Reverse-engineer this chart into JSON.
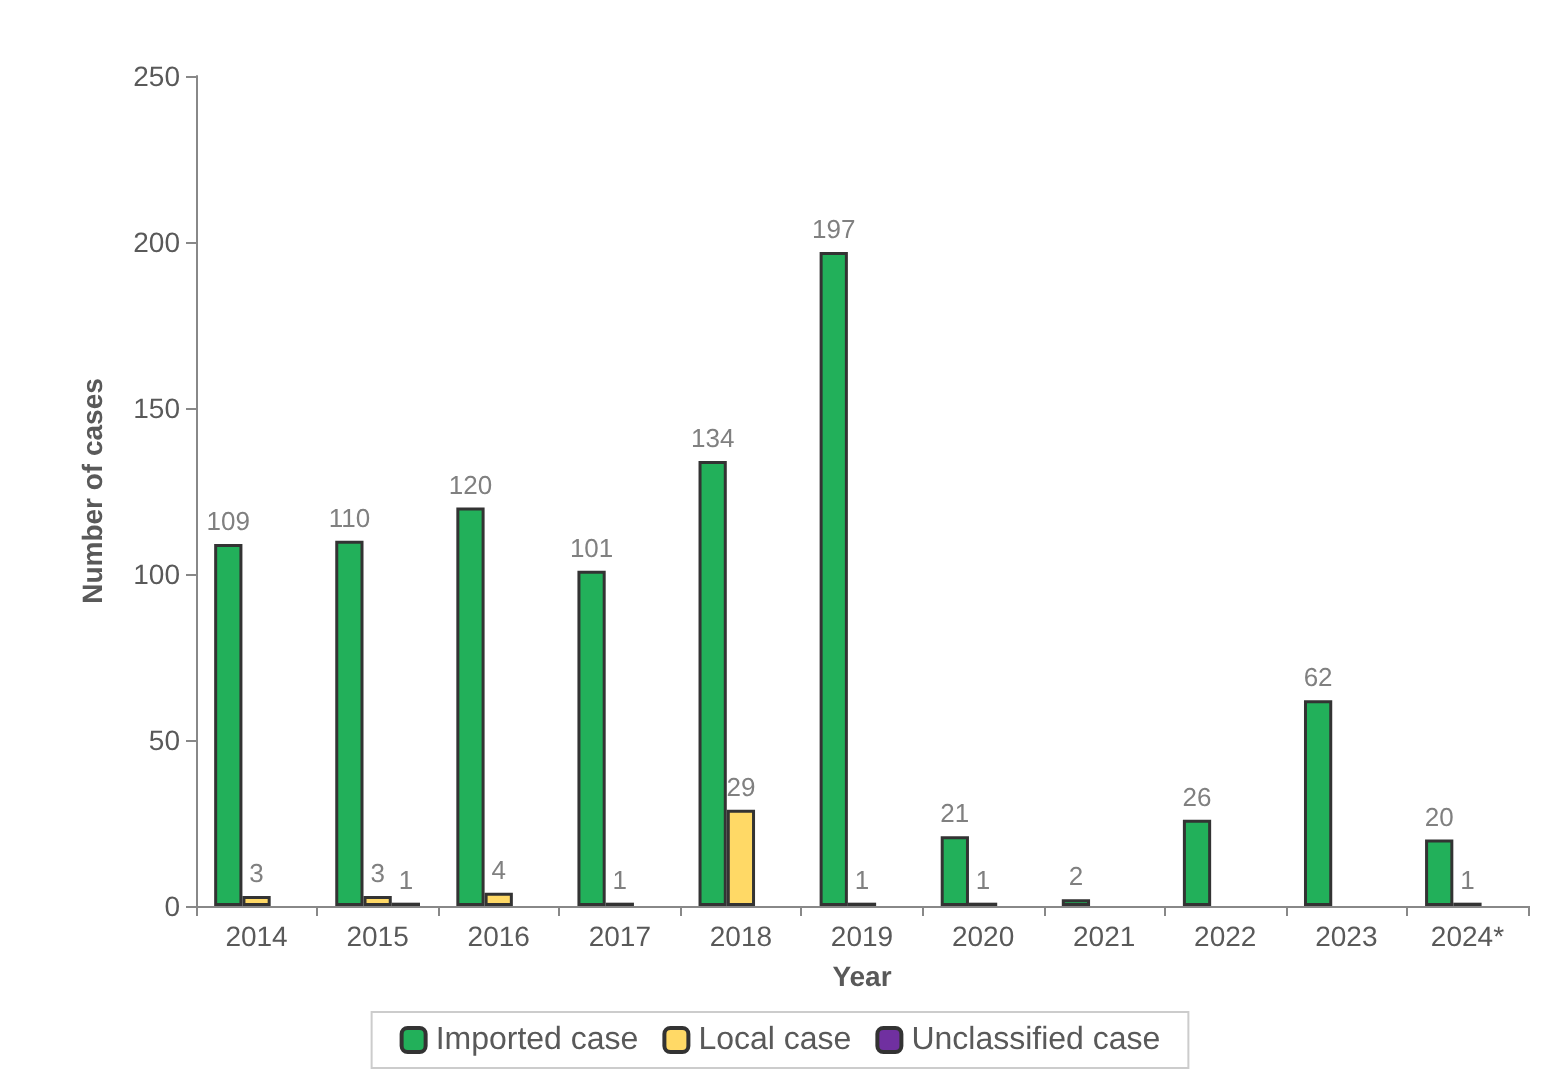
{
  "chart_data": {
    "type": "bar",
    "xlabel": "Year",
    "ylabel": "Number of cases",
    "categories": [
      "2014",
      "2015",
      "2016",
      "2017",
      "2018",
      "2019",
      "2020",
      "2021",
      "2022",
      "2023",
      "2024*"
    ],
    "series": [
      {
        "name": "Imported case",
        "color": "#22b05a",
        "values": [
          109,
          110,
          120,
          101,
          134,
          197,
          21,
          2,
          26,
          62,
          20
        ]
      },
      {
        "name": "Local case",
        "color": "#ffd966",
        "values": [
          3,
          3,
          4,
          1,
          29,
          1,
          1,
          null,
          null,
          null,
          1
        ]
      },
      {
        "name": "Unclassified case",
        "color": "#7030a0",
        "values": [
          null,
          1,
          null,
          null,
          null,
          null,
          null,
          null,
          null,
          null,
          null
        ]
      }
    ],
    "ylim": [
      0,
      250
    ],
    "yticks": [
      0,
      50,
      100,
      150,
      200,
      250
    ],
    "grid": false,
    "legend": "bottom",
    "data_labels": true
  }
}
